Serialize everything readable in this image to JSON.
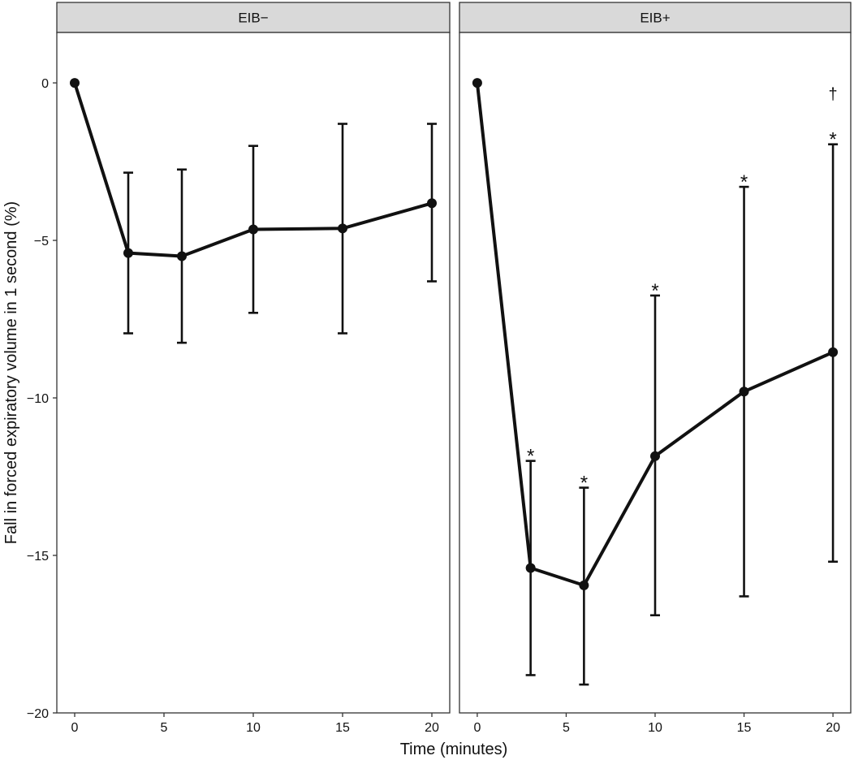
{
  "chart_data": {
    "type": "line",
    "xlabel": "Time (minutes)",
    "ylabel": "Fall in forced expiratory volume in 1 second (%)",
    "xlim": [
      -1,
      21
    ],
    "ylim": [
      -20,
      1.6
    ],
    "x_ticks": [
      0,
      5,
      10,
      15,
      20
    ],
    "y_ticks": [
      0,
      -5,
      -10,
      -15,
      -20
    ],
    "grid": false,
    "facets": [
      {
        "strip_label": "EIB−",
        "points": [
          {
            "x": 0,
            "y": 0,
            "lower": null,
            "upper": null,
            "annotation": ""
          },
          {
            "x": 3,
            "y": -5.4,
            "lower": -7.95,
            "upper": -2.85,
            "annotation": ""
          },
          {
            "x": 6,
            "y": -5.5,
            "lower": -8.25,
            "upper": -2.75,
            "annotation": ""
          },
          {
            "x": 10,
            "y": -4.65,
            "lower": -7.3,
            "upper": -2.0,
            "annotation": ""
          },
          {
            "x": 15,
            "y": -4.62,
            "lower": -7.95,
            "upper": -1.3,
            "annotation": ""
          },
          {
            "x": 20,
            "y": -3.82,
            "lower": -6.3,
            "upper": -1.3,
            "annotation": ""
          }
        ]
      },
      {
        "strip_label": "EIB+",
        "points": [
          {
            "x": 0,
            "y": 0,
            "lower": null,
            "upper": null,
            "annotation": ""
          },
          {
            "x": 3,
            "y": -15.4,
            "lower": -18.8,
            "upper": -12.0,
            "annotation": "*"
          },
          {
            "x": 6,
            "y": -15.95,
            "lower": -19.1,
            "upper": -12.85,
            "annotation": "*"
          },
          {
            "x": 10,
            "y": -11.85,
            "lower": -16.9,
            "upper": -6.75,
            "annotation": "*"
          },
          {
            "x": 15,
            "y": -9.8,
            "lower": -16.3,
            "upper": -3.3,
            "annotation": "*"
          },
          {
            "x": 20,
            "y": -8.55,
            "lower": -15.2,
            "upper": -1.95,
            "annotation": "*",
            "annotation2": "†"
          }
        ]
      }
    ]
  }
}
